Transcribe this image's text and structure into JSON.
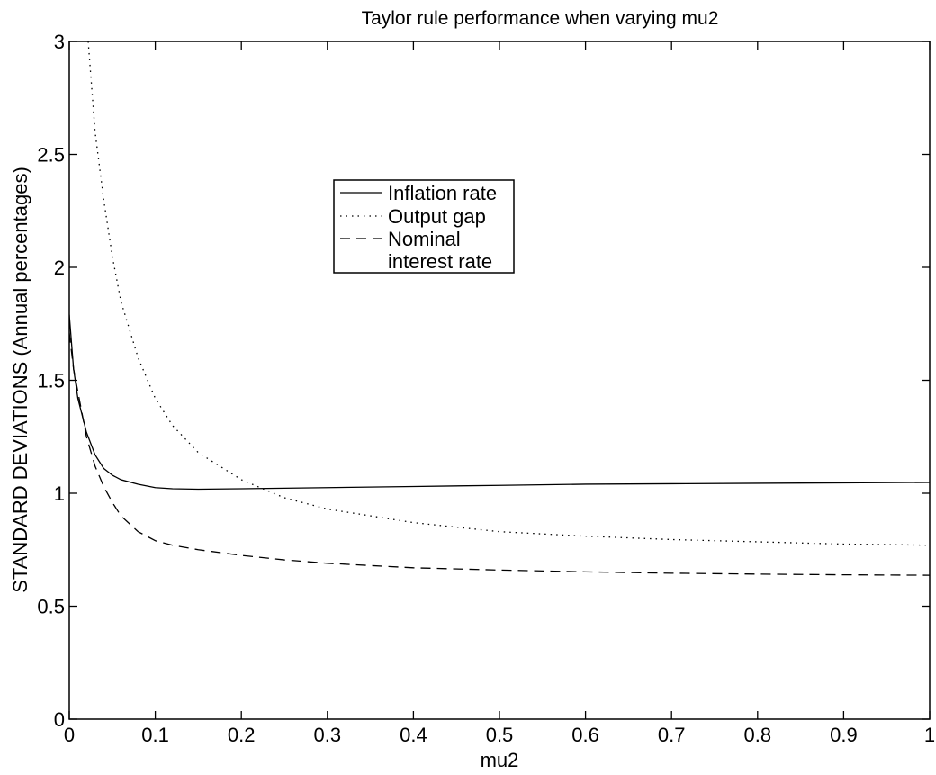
{
  "chart_data": {
    "type": "line",
    "title": "Taylor rule performance when varying mu2",
    "xlabel": "mu2",
    "ylabel": "STANDARD DEVIATIONS (Annual percentages)",
    "xlim": [
      0,
      1
    ],
    "ylim": [
      0,
      3
    ],
    "x_ticks": [
      0,
      0.1,
      0.2,
      0.3,
      0.4,
      0.5,
      0.6,
      0.7,
      0.8,
      0.9,
      1
    ],
    "x_tick_labels": [
      "0",
      "0.1",
      "0.2",
      "0.3",
      "0.4",
      "0.5",
      "0.6",
      "0.7",
      "0.8",
      "0.9",
      "1"
    ],
    "y_ticks": [
      0,
      0.5,
      1,
      1.5,
      2,
      2.5,
      3
    ],
    "y_tick_labels": [
      "0",
      "0.5",
      "1",
      "1.5",
      "2",
      "2.5",
      "3"
    ],
    "grid": false,
    "legend_position": "upper-center",
    "series": [
      {
        "name": "Inflation rate",
        "style": "solid",
        "x": [
          0,
          0.005,
          0.01,
          0.02,
          0.03,
          0.04,
          0.05,
          0.06,
          0.08,
          0.1,
          0.12,
          0.15,
          0.2,
          0.3,
          0.4,
          0.5,
          0.6,
          0.7,
          0.8,
          0.9,
          1.0
        ],
        "y": [
          1.79,
          1.55,
          1.42,
          1.27,
          1.17,
          1.11,
          1.08,
          1.06,
          1.04,
          1.025,
          1.02,
          1.018,
          1.02,
          1.025,
          1.03,
          1.035,
          1.04,
          1.042,
          1.044,
          1.046,
          1.048
        ]
      },
      {
        "name": "Output gap",
        "style": "dotted",
        "x": [
          0.022,
          0.03,
          0.04,
          0.05,
          0.06,
          0.08,
          0.1,
          0.12,
          0.15,
          0.2,
          0.25,
          0.3,
          0.4,
          0.5,
          0.6,
          0.7,
          0.8,
          0.9,
          1.0
        ],
        "y": [
          3.0,
          2.6,
          2.3,
          2.05,
          1.85,
          1.6,
          1.42,
          1.3,
          1.18,
          1.06,
          0.98,
          0.93,
          0.87,
          0.83,
          0.81,
          0.795,
          0.785,
          0.775,
          0.77
        ]
      },
      {
        "name": "Nominal interest rate",
        "style": "dashed",
        "x": [
          0,
          0.005,
          0.01,
          0.02,
          0.03,
          0.04,
          0.05,
          0.06,
          0.08,
          0.1,
          0.12,
          0.15,
          0.2,
          0.25,
          0.3,
          0.4,
          0.5,
          0.6,
          0.7,
          0.8,
          0.9,
          1.0
        ],
        "y": [
          1.71,
          1.55,
          1.45,
          1.25,
          1.12,
          1.03,
          0.96,
          0.9,
          0.83,
          0.79,
          0.77,
          0.75,
          0.725,
          0.705,
          0.69,
          0.67,
          0.66,
          0.652,
          0.646,
          0.642,
          0.639,
          0.637
        ]
      }
    ],
    "legend": {
      "entries": [
        {
          "label": "Inflation rate",
          "style": "solid"
        },
        {
          "label": "Output gap",
          "style": "dotted"
        },
        {
          "label": "Nominal",
          "label_line2": "interest rate",
          "style": "dashed"
        }
      ]
    }
  }
}
